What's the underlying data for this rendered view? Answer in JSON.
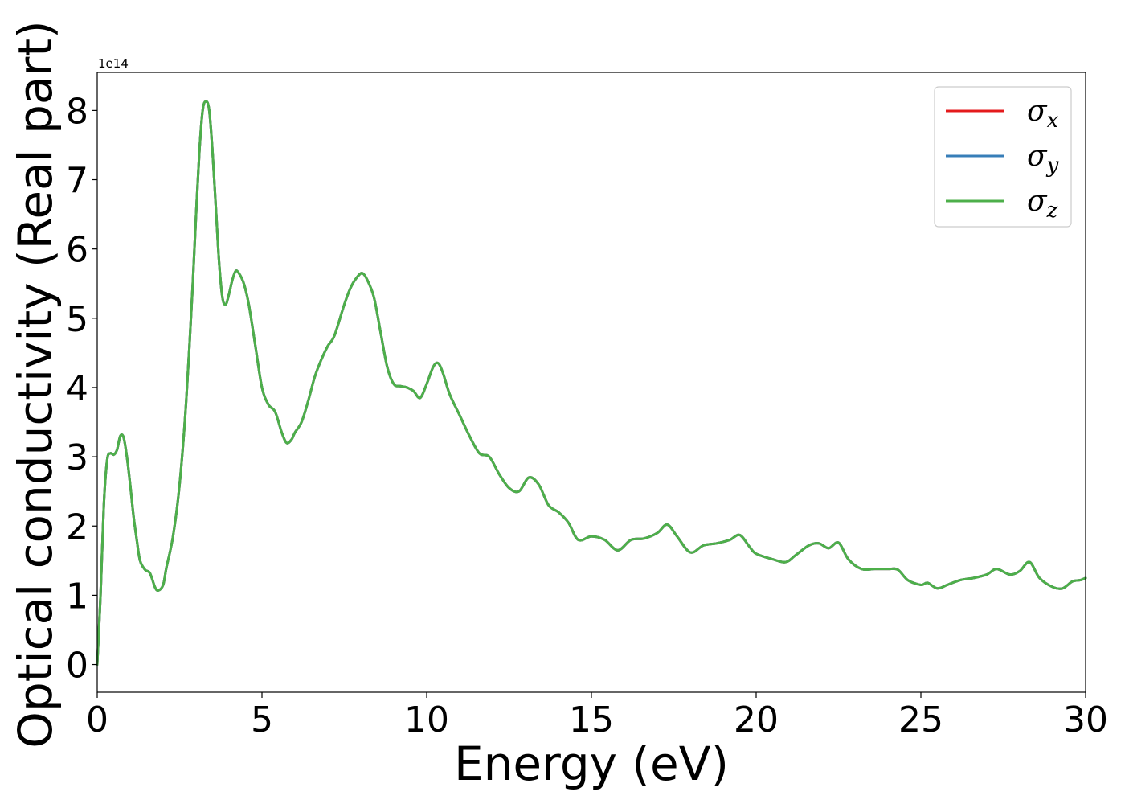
{
  "chart_data": {
    "type": "line",
    "title": "",
    "xlabel": "Energy (eV)",
    "ylabel": "Optical conductivity (Real part)",
    "y_offset_text": "1e14",
    "y_scale": 100000000000000.0,
    "xlim": [
      0,
      30
    ],
    "ylim": [
      -0.4,
      8.55
    ],
    "x_ticks": [
      0,
      5,
      10,
      15,
      20,
      25,
      30
    ],
    "x_tick_labels": [
      "0",
      "5",
      "10",
      "15",
      "20",
      "25",
      "30"
    ],
    "y_ticks": [
      0,
      1,
      2,
      3,
      4,
      5,
      6,
      7,
      8
    ],
    "y_tick_labels": [
      "0",
      "1",
      "2",
      "3",
      "4",
      "5",
      "6",
      "7",
      "8"
    ],
    "grid": false,
    "legend_position": "top-right",
    "colors": {
      "sigma_x": "#e41a1c",
      "sigma_y": "#377eb8",
      "sigma_z": "#4daf4a"
    },
    "legend": [
      {
        "symbol": "σ",
        "subscript": "x",
        "color": "#e41a1c"
      },
      {
        "symbol": "σ",
        "subscript": "y",
        "color": "#377eb8"
      },
      {
        "symbol": "σ",
        "subscript": "z",
        "color": "#4daf4a"
      }
    ],
    "x": [
      0.0,
      0.1,
      0.2,
      0.3,
      0.4,
      0.5,
      0.6,
      0.7,
      0.8,
      0.9,
      1.0,
      1.1,
      1.2,
      1.3,
      1.45,
      1.6,
      1.75,
      1.85,
      2.0,
      2.1,
      2.3,
      2.5,
      2.7,
      2.9,
      3.0,
      3.1,
      3.2,
      3.3,
      3.4,
      3.5,
      3.6,
      3.7,
      3.8,
      3.9,
      4.0,
      4.1,
      4.2,
      4.3,
      4.45,
      4.6,
      4.8,
      5.0,
      5.2,
      5.4,
      5.6,
      5.75,
      5.9,
      6.0,
      6.2,
      6.4,
      6.6,
      6.8,
      7.0,
      7.2,
      7.5,
      7.7,
      7.9,
      8.05,
      8.2,
      8.4,
      8.6,
      8.8,
      9.0,
      9.2,
      9.4,
      9.6,
      9.8,
      10.0,
      10.2,
      10.35,
      10.5,
      10.7,
      11.0,
      11.3,
      11.6,
      11.9,
      12.2,
      12.5,
      12.8,
      13.1,
      13.4,
      13.7,
      14.0,
      14.3,
      14.6,
      15.0,
      15.4,
      15.8,
      16.2,
      16.6,
      17.0,
      17.3,
      17.6,
      18.0,
      18.4,
      18.8,
      19.2,
      19.5,
      19.8,
      20.0,
      20.5,
      20.9,
      21.2,
      21.6,
      21.9,
      22.2,
      22.5,
      22.8,
      23.2,
      23.6,
      24.0,
      24.3,
      24.6,
      25.0,
      25.2,
      25.5,
      25.8,
      26.2,
      26.6,
      27.0,
      27.3,
      27.7,
      28.0,
      28.3,
      28.6,
      29.0,
      29.3,
      29.6,
      29.85,
      30.0
    ],
    "series": [
      {
        "name": "σx",
        "color": "#e41a1c",
        "values": [
          0.0,
          1.0,
          2.3,
          2.95,
          3.05,
          3.03,
          3.1,
          3.3,
          3.28,
          3.0,
          2.6,
          2.15,
          1.8,
          1.5,
          1.37,
          1.32,
          1.12,
          1.07,
          1.15,
          1.4,
          1.85,
          2.6,
          3.8,
          5.5,
          6.5,
          7.4,
          8.0,
          8.13,
          8.0,
          7.4,
          6.6,
          5.8,
          5.3,
          5.2,
          5.35,
          5.55,
          5.68,
          5.65,
          5.5,
          5.2,
          4.6,
          4.0,
          3.75,
          3.65,
          3.35,
          3.2,
          3.25,
          3.35,
          3.5,
          3.8,
          4.15,
          4.4,
          4.6,
          4.75,
          5.2,
          5.45,
          5.6,
          5.65,
          5.55,
          5.3,
          4.8,
          4.3,
          4.05,
          4.02,
          4.0,
          3.95,
          3.85,
          4.05,
          4.3,
          4.35,
          4.2,
          3.9,
          3.6,
          3.3,
          3.05,
          3.0,
          2.75,
          2.55,
          2.5,
          2.7,
          2.6,
          2.3,
          2.2,
          2.05,
          1.8,
          1.85,
          1.8,
          1.65,
          1.8,
          1.82,
          1.9,
          2.02,
          1.85,
          1.62,
          1.72,
          1.75,
          1.8,
          1.87,
          1.7,
          1.6,
          1.52,
          1.48,
          1.58,
          1.72,
          1.75,
          1.68,
          1.76,
          1.52,
          1.38,
          1.38,
          1.38,
          1.37,
          1.22,
          1.15,
          1.18,
          1.1,
          1.15,
          1.22,
          1.25,
          1.3,
          1.38,
          1.3,
          1.35,
          1.48,
          1.25,
          1.12,
          1.1,
          1.2,
          1.22,
          1.25
        ]
      },
      {
        "name": "σy",
        "color": "#377eb8",
        "values": [
          0.0,
          1.0,
          2.3,
          2.95,
          3.05,
          3.03,
          3.1,
          3.3,
          3.28,
          3.0,
          2.6,
          2.15,
          1.8,
          1.5,
          1.37,
          1.32,
          1.12,
          1.07,
          1.15,
          1.4,
          1.85,
          2.6,
          3.8,
          5.5,
          6.5,
          7.4,
          8.0,
          8.13,
          8.0,
          7.4,
          6.6,
          5.8,
          5.3,
          5.2,
          5.35,
          5.55,
          5.68,
          5.65,
          5.5,
          5.2,
          4.6,
          4.0,
          3.75,
          3.65,
          3.35,
          3.2,
          3.25,
          3.35,
          3.5,
          3.8,
          4.15,
          4.4,
          4.6,
          4.75,
          5.2,
          5.45,
          5.6,
          5.65,
          5.55,
          5.3,
          4.8,
          4.3,
          4.05,
          4.02,
          4.0,
          3.95,
          3.85,
          4.05,
          4.3,
          4.35,
          4.2,
          3.9,
          3.6,
          3.3,
          3.05,
          3.0,
          2.75,
          2.55,
          2.5,
          2.7,
          2.6,
          2.3,
          2.2,
          2.05,
          1.8,
          1.85,
          1.8,
          1.65,
          1.8,
          1.82,
          1.9,
          2.02,
          1.85,
          1.62,
          1.72,
          1.75,
          1.8,
          1.87,
          1.7,
          1.6,
          1.52,
          1.48,
          1.58,
          1.72,
          1.75,
          1.68,
          1.76,
          1.52,
          1.38,
          1.38,
          1.38,
          1.37,
          1.22,
          1.15,
          1.18,
          1.1,
          1.15,
          1.22,
          1.25,
          1.3,
          1.38,
          1.3,
          1.35,
          1.48,
          1.25,
          1.12,
          1.1,
          1.2,
          1.22,
          1.25
        ]
      },
      {
        "name": "σz",
        "color": "#4daf4a",
        "values": [
          0.0,
          1.0,
          2.3,
          2.95,
          3.05,
          3.03,
          3.1,
          3.3,
          3.28,
          3.0,
          2.6,
          2.15,
          1.8,
          1.5,
          1.37,
          1.32,
          1.12,
          1.07,
          1.15,
          1.4,
          1.85,
          2.6,
          3.8,
          5.5,
          6.5,
          7.4,
          8.0,
          8.13,
          8.0,
          7.4,
          6.6,
          5.8,
          5.3,
          5.2,
          5.35,
          5.55,
          5.68,
          5.65,
          5.5,
          5.2,
          4.6,
          4.0,
          3.75,
          3.65,
          3.35,
          3.2,
          3.25,
          3.35,
          3.5,
          3.8,
          4.15,
          4.4,
          4.6,
          4.75,
          5.2,
          5.45,
          5.6,
          5.65,
          5.55,
          5.3,
          4.8,
          4.3,
          4.05,
          4.02,
          4.0,
          3.95,
          3.85,
          4.05,
          4.3,
          4.35,
          4.2,
          3.9,
          3.6,
          3.3,
          3.05,
          3.0,
          2.75,
          2.55,
          2.5,
          2.7,
          2.6,
          2.3,
          2.2,
          2.05,
          1.8,
          1.85,
          1.8,
          1.65,
          1.8,
          1.82,
          1.9,
          2.02,
          1.85,
          1.62,
          1.72,
          1.75,
          1.8,
          1.87,
          1.7,
          1.6,
          1.52,
          1.48,
          1.58,
          1.72,
          1.75,
          1.68,
          1.76,
          1.52,
          1.38,
          1.38,
          1.38,
          1.37,
          1.22,
          1.15,
          1.18,
          1.1,
          1.15,
          1.22,
          1.25,
          1.3,
          1.38,
          1.3,
          1.35,
          1.48,
          1.25,
          1.12,
          1.1,
          1.2,
          1.22,
          1.25
        ]
      }
    ]
  }
}
